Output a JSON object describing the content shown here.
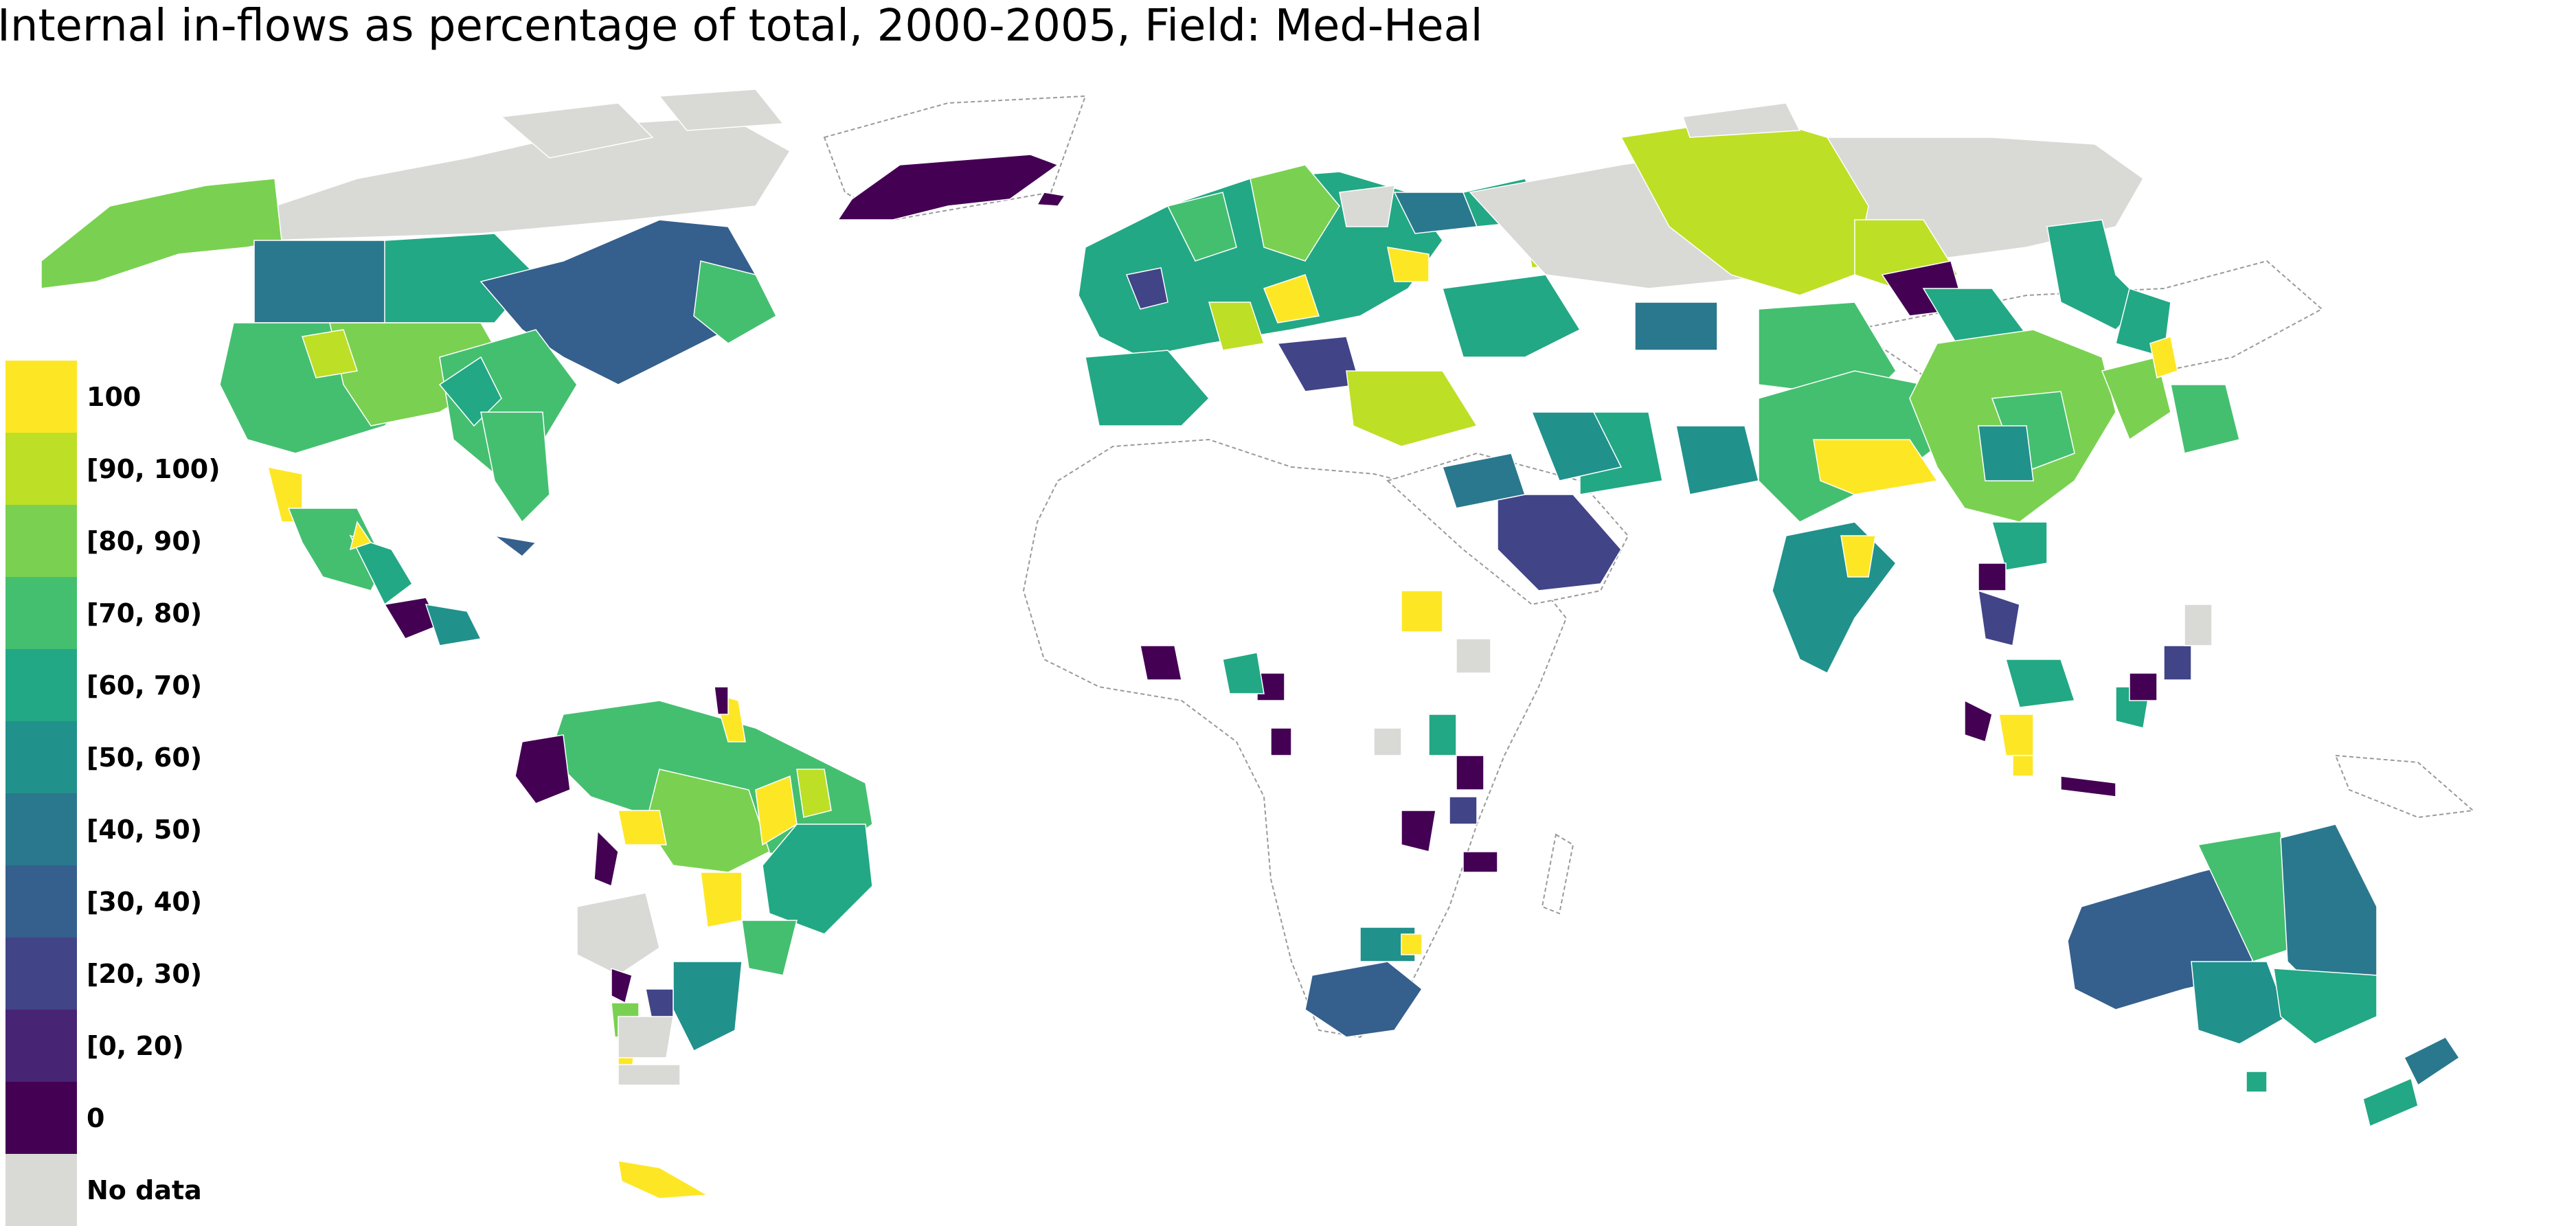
{
  "title": "Internal in-flows as percentage of total, 2000-2005, Field: Med-Heal",
  "legend": [
    {
      "label": "100",
      "color": "#fde725"
    },
    {
      "label": "[90, 100)",
      "color": "#bddf26"
    },
    {
      "label": "[80, 90)",
      "color": "#7ad151"
    },
    {
      "label": "[70, 80)",
      "color": "#44bf70"
    },
    {
      "label": "[60, 70)",
      "color": "#22a884"
    },
    {
      "label": "[50, 60)",
      "color": "#21918c"
    },
    {
      "label": "[40, 50)",
      "color": "#2a788e"
    },
    {
      "label": "[30, 40)",
      "color": "#355f8d"
    },
    {
      "label": "[20, 30)",
      "color": "#414487"
    },
    {
      "label": "[0, 20)",
      "color": "#482475"
    },
    {
      "label": "0",
      "color": "#440154"
    },
    {
      "label": "No data",
      "color": "#d9d9d6"
    }
  ],
  "colors": {
    "background": "#ffffff",
    "country_fill_default": "#ffffff",
    "border": "#9a9a9a"
  }
}
